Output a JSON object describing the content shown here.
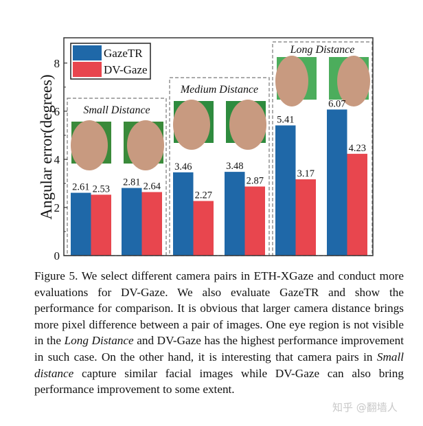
{
  "chart_data": {
    "type": "bar",
    "ylabel": "Angular error(degrees)",
    "ylim": [
      0,
      9.05
    ],
    "yticks": [
      "0",
      "2",
      "4",
      "6",
      "8"
    ],
    "grid": false,
    "legend_placement": "top-left",
    "groups": [
      {
        "label": "Small Distance",
        "pairs": [
          {
            "GazeTR": 2.61,
            "DV-Gaze": 2.53,
            "labels": [
              "2.61",
              "2.53"
            ]
          },
          {
            "GazeTR": 2.81,
            "DV-Gaze": 2.64,
            "labels": [
              "2.81",
              "2.64"
            ]
          }
        ]
      },
      {
        "label": "Medium Distance",
        "pairs": [
          {
            "GazeTR": 3.46,
            "DV-Gaze": 2.27,
            "labels": [
              "3.46",
              "2.27"
            ]
          },
          {
            "GazeTR": 3.48,
            "DV-Gaze": 2.87,
            "labels": [
              "3.48",
              "2.87"
            ]
          }
        ]
      },
      {
        "label": "Long Distance",
        "pairs": [
          {
            "GazeTR": 5.41,
            "DV-Gaze": 3.17,
            "labels": [
              "5.41",
              "3.17"
            ]
          },
          {
            "GazeTR": 6.07,
            "DV-Gaze": 4.23,
            "labels": [
              "6.07",
              "4.23"
            ]
          }
        ]
      }
    ],
    "series": [
      {
        "name": "GazeTR",
        "color": "#1f68a8",
        "values": [
          2.61,
          2.81,
          3.46,
          3.48,
          5.41,
          6.07
        ]
      },
      {
        "name": "DV-Gaze",
        "color": "#e8464e",
        "values": [
          2.53,
          2.64,
          2.27,
          2.87,
          3.17,
          4.23
        ]
      }
    ]
  },
  "caption": {
    "p1": "Figure 5. We select different camera pairs in ETH-XGaze and conduct more evaluations for DV-Gaze. We also evaluate GazeTR and show the performance for comparison. It is obvious that larger camera distance brings more pixel difference between a pair of images. One eye region is not visible in the ",
    "em1": "Long Distance",
    "p2": " and DV-Gaze has the highest performance improvement in such case. On the other hand, it is interesting that camera pairs in ",
    "em2": "Small distance",
    "p3": " capture similar facial images while DV-Gaze can also bring performance improvement to some extent."
  },
  "watermark": "知乎 @翻墙人"
}
